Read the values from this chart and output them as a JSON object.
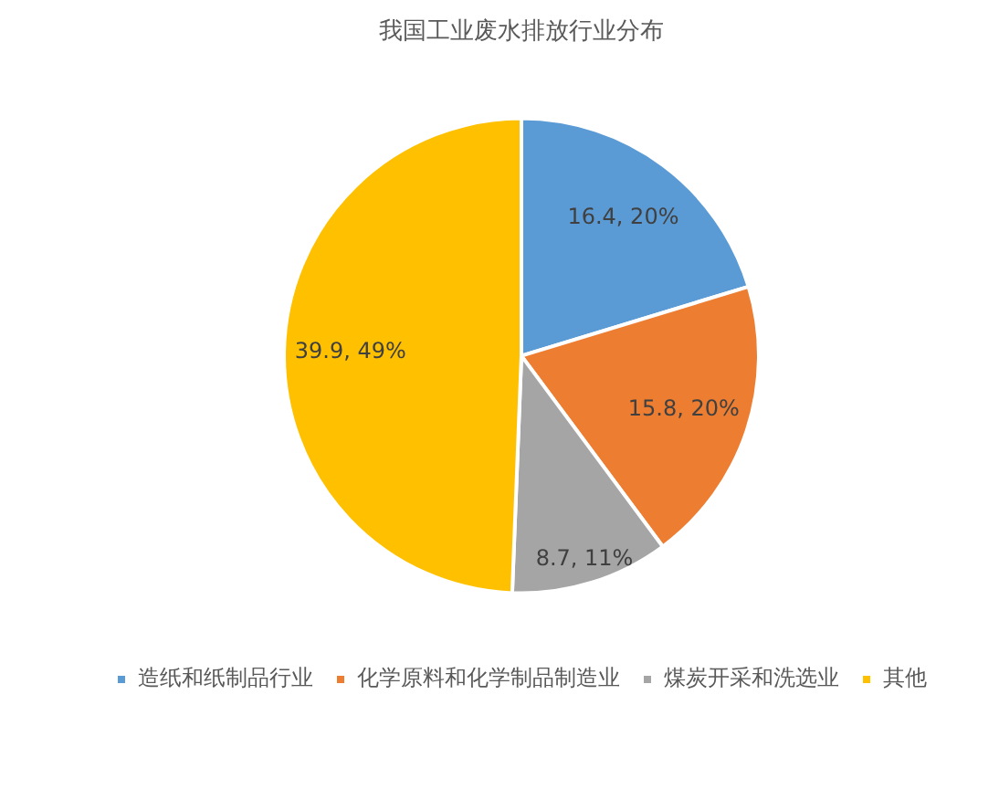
{
  "chart_data": {
    "type": "pie",
    "title": "我国工业废水排放行业分布",
    "categories": [
      "造纸和纸制品行业",
      "化学原料和化学制品制造业",
      "煤炭开采和洗选业",
      "其他"
    ],
    "values": [
      16.4,
      15.8,
      8.7,
      39.9
    ],
    "colors": [
      "#5b9bd5",
      "#ed7d31",
      "#a5a5a5",
      "#ffc000"
    ],
    "value_labels": [
      "16.4, 20%",
      "15.8, 20%",
      "8.7, 11%",
      "39.9, 49%"
    ],
    "legend": "bottom"
  }
}
